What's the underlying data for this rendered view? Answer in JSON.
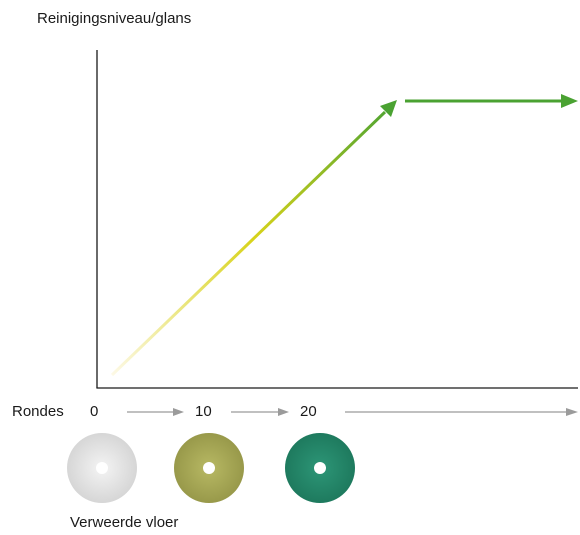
{
  "diagram": {
    "y_axis_label": "Reinigingsniveau/glans",
    "x_axis_label": "Rondes",
    "ticks": [
      "0",
      "10",
      "20"
    ],
    "pads": [
      {
        "name": "white-pad",
        "color": "#e4e4e4"
      },
      {
        "name": "olive-pad",
        "color": "#a9aa58"
      },
      {
        "name": "green-pad",
        "color": "#268a6c"
      }
    ],
    "caption": "Verweerde vloer",
    "colors": {
      "rising_start": "#fbf6d8",
      "rising_mid": "#d6d21a",
      "plateau": "#4aa232",
      "axis": "#1a1a1a",
      "progress_arrow": "#9b9b9b"
    }
  }
}
